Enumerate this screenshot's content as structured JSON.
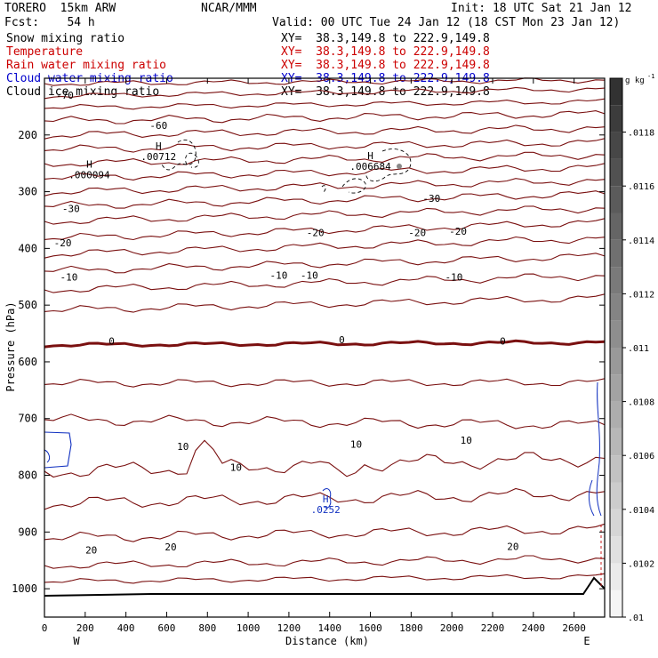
{
  "header": {
    "model": "TORERO  15km ARW",
    "fcst": "Fcst:    54 h",
    "org": "NCAR/MMM",
    "init": "Init: 18 UTC Sat 21 Jan 12",
    "valid": "Valid: 00 UTC Tue 24 Jan 12 (18 CST Mon 23 Jan 12)"
  },
  "fields": [
    {
      "name": "Snow mixing ratio",
      "xy": "XY=  38.3,149.8 to 222.9,149.8",
      "color": "#000000"
    },
    {
      "name": "Temperature",
      "xy": "XY=  38.3,149.8 to 222.9,149.8",
      "color": "#cc0000"
    },
    {
      "name": "Rain water mixing ratio",
      "xy": "XY=  38.3,149.8 to 222.9,149.8",
      "color": "#cc0000"
    },
    {
      "name": "Cloud water mixing ratio",
      "xy": "XY=  38.3,149.8 to 222.9,149.8",
      "color": "#0000cc"
    },
    {
      "name": "Cloud ice mixing ratio",
      "xy": "XY=  38.3,149.8 to 222.9,149.8",
      "color": "#000000"
    }
  ],
  "colorbar": {
    "unit": "g kg",
    "unit_exp": "-1",
    "ticks": [
      0.01,
      0.0102,
      0.0104,
      0.0106,
      0.0108,
      0.011,
      0.0112,
      0.0114,
      0.0116,
      0.0118
    ],
    "tick_labels": [
      ".01",
      ".0102",
      ".0104",
      ".0106",
      ".0108",
      ".011",
      ".0112",
      ".0114",
      ".0116",
      ".0118"
    ]
  },
  "chart_data": {
    "type": "contour",
    "xlabel": "Distance (km)",
    "ylabel": "Pressure (hPa)",
    "xlim": [
      0,
      2750
    ],
    "ylim": [
      1050,
      100
    ],
    "x_ticks": [
      0,
      200,
      400,
      600,
      800,
      1000,
      1200,
      1400,
      1600,
      1800,
      2000,
      2200,
      2400,
      2600
    ],
    "y_ticks": [
      200,
      300,
      400,
      500,
      600,
      700,
      800,
      900,
      1000
    ],
    "x_end_labels": {
      "left": "W",
      "right": "E"
    },
    "temperature_contour_labels": [
      {
        "text": "-70",
        "x": 100,
        "p": 130
      },
      {
        "text": "-60",
        "x": 560,
        "p": 183
      },
      {
        "text": "-30",
        "x": 130,
        "p": 330
      },
      {
        "text": "-30",
        "x": 1900,
        "p": 312
      },
      {
        "text": "-20",
        "x": 90,
        "p": 390
      },
      {
        "text": "-20",
        "x": 1330,
        "p": 372
      },
      {
        "text": "-20",
        "x": 1830,
        "p": 372
      },
      {
        "text": "-20",
        "x": 2030,
        "p": 370
      },
      {
        "text": "-10",
        "x": 120,
        "p": 450
      },
      {
        "text": "-10",
        "x": 1150,
        "p": 447
      },
      {
        "text": "-10",
        "x": 1300,
        "p": 447
      },
      {
        "text": "-10",
        "x": 2010,
        "p": 450
      },
      {
        "text": "0",
        "x": 330,
        "p": 563
      },
      {
        "text": "0",
        "x": 1460,
        "p": 561
      },
      {
        "text": "0",
        "x": 2250,
        "p": 563
      },
      {
        "text": "10",
        "x": 680,
        "p": 749
      },
      {
        "text": "10",
        "x": 940,
        "p": 786
      },
      {
        "text": "10",
        "x": 1530,
        "p": 745
      },
      {
        "text": "10",
        "x": 2070,
        "p": 738
      },
      {
        "text": "20",
        "x": 230,
        "p": 932
      },
      {
        "text": "20",
        "x": 620,
        "p": 926
      },
      {
        "text": "20",
        "x": 2300,
        "p": 925
      }
    ],
    "extrema_labels": [
      {
        "h": "H",
        "value": ".00712",
        "x": 560,
        "p": 238
      },
      {
        "h": "H",
        "value": ".000094",
        "x": 220,
        "p": 270
      },
      {
        "h": "H",
        "value": ".006684",
        "x": 1600,
        "p": 255
      },
      {
        "h": "H",
        "value": ".0252",
        "x": 1380,
        "p": 860
      }
    ],
    "freezing_level_hPa": 563,
    "colorbar_range": [
      0.01,
      0.012
    ]
  }
}
